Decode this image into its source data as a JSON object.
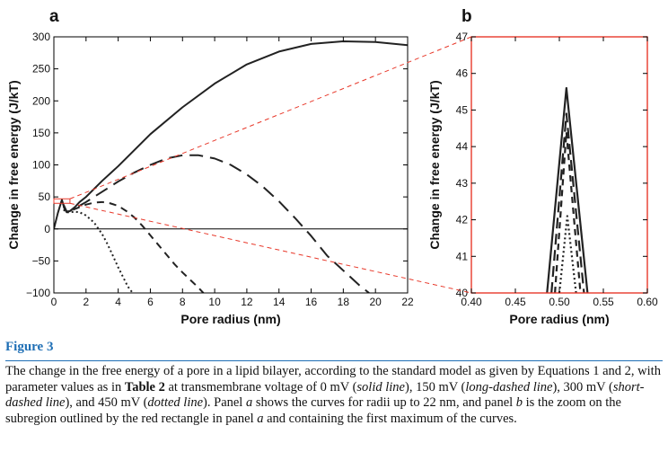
{
  "chart_data": [
    {
      "type": "line",
      "panel_label": "a",
      "xlabel": "Pore radius (nm)",
      "ylabel": "Change in free energy (J/kT)",
      "xlim": [
        0,
        22
      ],
      "ylim": [
        -100,
        300
      ],
      "xticks": [
        0,
        2,
        4,
        6,
        8,
        10,
        12,
        14,
        16,
        18,
        20,
        22
      ],
      "yticks": [
        -100,
        -50,
        0,
        50,
        100,
        150,
        200,
        250,
        300
      ],
      "grid": false,
      "zero_line": true,
      "series": [
        {
          "style": "solid",
          "x": [
            0,
            0.25,
            0.5,
            0.65,
            0.8,
            1.0,
            1.3,
            1.6,
            2,
            3,
            4,
            6,
            8,
            10,
            12,
            14,
            16,
            18,
            20,
            22
          ],
          "y": [
            0,
            25,
            45.5,
            32,
            26,
            28,
            34,
            42,
            50,
            75,
            98,
            148,
            190,
            227,
            257,
            277,
            289,
            293,
            292,
            287
          ]
        },
        {
          "style": "long-dashed",
          "x": [
            0.6,
            0.8,
            1.0,
            1.5,
            2,
            3,
            4,
            5,
            6,
            7,
            8,
            9,
            10,
            11,
            12,
            13,
            14,
            15,
            16,
            17,
            18,
            19,
            19.6
          ],
          "y": [
            38,
            27,
            28,
            35,
            42,
            58,
            74,
            88,
            100,
            110,
            115,
            115,
            110,
            100,
            85,
            66,
            43,
            17,
            -11,
            -42,
            -65,
            -88,
            -100
          ]
        },
        {
          "style": "short-dashed",
          "x": [
            0.6,
            0.8,
            1.0,
            1.5,
            2,
            2.5,
            3,
            3.5,
            4,
            4.5,
            5,
            5.5,
            6,
            6.5,
            7,
            7.5,
            8,
            8.5,
            9,
            9.3
          ],
          "y": [
            35,
            27,
            28,
            33,
            38,
            41,
            42,
            40,
            36,
            28,
            18,
            5,
            -10,
            -25,
            -40,
            -55,
            -68,
            -80,
            -92,
            -100
          ]
        },
        {
          "style": "dotted",
          "x": [
            0.6,
            0.8,
            1.0,
            1.3,
            1.6,
            2.0,
            2.5,
            3.0,
            3.3,
            3.6,
            4.0,
            4.3,
            4.6,
            4.9
          ],
          "y": [
            30,
            26,
            26,
            27,
            26,
            21,
            10,
            -8,
            -22,
            -38,
            -60,
            -75,
            -90,
            -100
          ]
        }
      ]
    },
    {
      "type": "line",
      "panel_label": "b",
      "xlabel": "Pore radius (nm)",
      "ylabel": "Change in free energy (J/kT)",
      "xlim": [
        0.4,
        0.6
      ],
      "ylim": [
        40,
        47
      ],
      "xticks": [
        0.4,
        0.45,
        0.5,
        0.55,
        0.6
      ],
      "xtick_labels": [
        "0.40",
        "0.45",
        "0.50",
        "0.55",
        "0.60"
      ],
      "yticks": [
        40,
        41,
        42,
        43,
        44,
        45,
        46,
        47
      ],
      "frame_color": "#e8392b",
      "series": [
        {
          "style": "solid",
          "x": [
            0.486,
            0.508,
            0.532
          ],
          "y": [
            40,
            45.6,
            40
          ]
        },
        {
          "style": "long-dashed",
          "x": [
            0.491,
            0.508,
            0.528
          ],
          "y": [
            40,
            44.9,
            40
          ]
        },
        {
          "style": "short-dashed",
          "x": [
            0.495,
            0.508,
            0.524
          ],
          "y": [
            40,
            44.4,
            40
          ]
        },
        {
          "style": "dotted",
          "x": [
            0.5,
            0.509,
            0.519
          ],
          "y": [
            40,
            42.1,
            40
          ]
        }
      ]
    }
  ],
  "zoom_region": {
    "x_range": [
      0,
      1
    ],
    "y_range": [
      40,
      47
    ],
    "color": "#e8392b"
  },
  "caption": {
    "figure_label": "Figure 3",
    "text_1": "The change in the free energy of a pore in a lipid bilayer, according to the standard model as given by Equations 1 and 2, with parameter values as in ",
    "text_table_ref": "Table 2",
    "text_2": " at transmembrane voltage of 0 mV (",
    "style_solid": "solid line",
    "text_3": "), 150 mV (",
    "style_long": "long-dashed line",
    "text_4": "), 300 mV (",
    "style_short": "short-dashed line",
    "text_5": "), and 450 mV (",
    "style_dotted": "dotted line",
    "text_6": "). Panel ",
    "panel_a": "a",
    "text_7": " shows the curves for radii up to 22 nm, and panel ",
    "panel_b": "b",
    "text_8": " is the zoom on the subregion outlined by the red rectangle in panel ",
    "panel_a2": "a",
    "text_9": " and containing the first maximum of the curves."
  }
}
